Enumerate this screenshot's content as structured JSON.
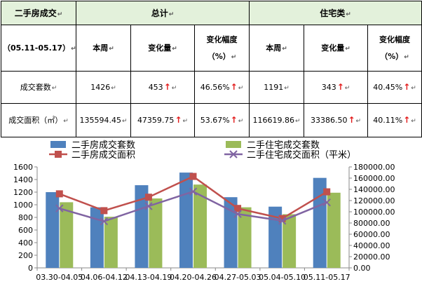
{
  "table": {
    "header": {
      "col1": "二手房成交",
      "group1": "总计",
      "group2": "住宅类"
    },
    "period": "（05.11-05.17）",
    "subheaders": {
      "this_week": "本周",
      "change": "变化量",
      "change_pct_line1": "变化幅度",
      "change_pct_line2": "（%）"
    },
    "rows": [
      {
        "label": "成交套数",
        "total_week": "1426",
        "total_change": "453",
        "total_pct": "46.56%",
        "res_week": "1191",
        "res_change": "343",
        "res_pct": "40.45%"
      },
      {
        "label": "成交面积（㎡）",
        "total_week": "135594.45",
        "total_change": "47359.75",
        "total_pct": "53.67%",
        "res_week": "116619.86",
        "res_change": "33386.50",
        "res_pct": "40.11%"
      }
    ],
    "arrow_glyph": "↑",
    "edit_mark": "↵"
  },
  "colors": {
    "bar_total": "#4f81bd",
    "bar_res": "#9bbb59",
    "line_total": "#c0504d",
    "line_res": "#8064a2",
    "header_bg": "#e3f1db",
    "arrow": "#e21b1b"
  },
  "chart_data": {
    "type": "bar",
    "categories": [
      "03.30-04.05",
      "04.06-04.12",
      "04.13-04.19",
      "04.20-04.26",
      "04.27-05.03",
      "05.04-05.10",
      "05.11-05.17"
    ],
    "series": [
      {
        "name": "二手房成交套数",
        "type": "bar",
        "axis": "left",
        "values": [
          1200,
          960,
          1310,
          1510,
          1120,
          970,
          1426
        ]
      },
      {
        "name": "二手住宅成交套数",
        "type": "bar",
        "axis": "left",
        "values": [
          1040,
          810,
          1100,
          1320,
          960,
          850,
          1191
        ]
      },
      {
        "name": "二手房成交面积",
        "type": "line",
        "axis": "right",
        "values": [
          132000,
          102000,
          126000,
          163000,
          106000,
          88000,
          135594.45
        ]
      },
      {
        "name": "二手住宅成交面积（平米）",
        "type": "line",
        "axis": "right",
        "values": [
          106000,
          83000,
          110000,
          136000,
          96000,
          84000,
          116619.86
        ]
      }
    ],
    "y_left": {
      "min": 0,
      "max": 1600,
      "step": 200,
      "ticks": [
        "0",
        "200",
        "400",
        "600",
        "800",
        "1000",
        "1200",
        "1400",
        "1600"
      ]
    },
    "y_right": {
      "min": 0,
      "max": 180000,
      "step": 20000,
      "ticks": [
        "0.00",
        "20000.00",
        "40000.00",
        "60000.00",
        "80000.00",
        "100000.00",
        "120000.00",
        "140000.00",
        "160000.00",
        "180000.00"
      ]
    },
    "legend_position": "top",
    "grid": false
  }
}
